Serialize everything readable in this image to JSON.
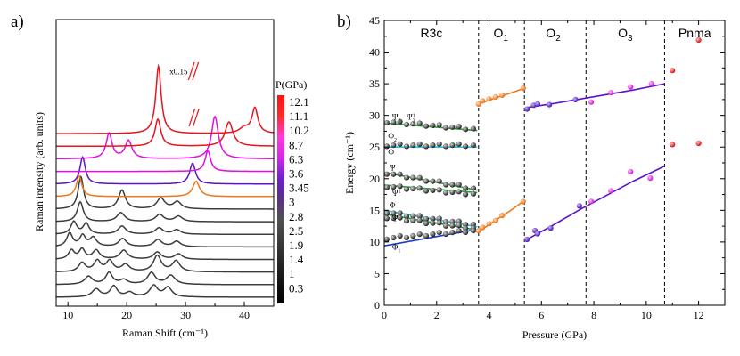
{
  "panel_a": {
    "label": "a)"
  },
  "panel_b": {
    "label": "b)"
  },
  "chart_data": [
    {
      "type": "line",
      "title": "",
      "xlabel": "Raman Shift (cm⁻¹)",
      "ylabel": "Raman intensity (arb. units)",
      "xlim": [
        8,
        45
      ],
      "x_ticks": [
        "10",
        "20",
        "30",
        "40"
      ],
      "annotation": "x0.15",
      "legend_title": "P(GPa)",
      "colorbar_labels": [
        "12.1",
        "11.1",
        "10.2",
        "8.7",
        "6.3",
        "3.6",
        "3.45",
        "3",
        "2.8",
        "2.5",
        "1.9",
        "1.4",
        "1",
        "0.3"
      ],
      "colorbar_label_colors": [
        "#e8141c",
        "#e8141c",
        "#e010e0",
        "#e010e0",
        "#5c14c8",
        "#f07818",
        "#222222",
        "#222222",
        "#222222",
        "#222222",
        "#222222",
        "#222222",
        "#222222",
        "#222222"
      ],
      "series": [
        {
          "name": "0.3",
          "color": "#3c3c3c",
          "baseline": 0.0,
          "peaks": [
            [
              14.8,
              0.9,
              0.8
            ],
            [
              17.8,
              1.2,
              0.7
            ],
            [
              20.5,
              0.5,
              0.8
            ],
            [
              24.6,
              1.25,
              0.8
            ],
            [
              27,
              1.05,
              0.8
            ]
          ]
        },
        {
          "name": "1",
          "color": "#3c3c3c",
          "baseline": 1.4,
          "peaks": [
            [
              13.5,
              0.9,
              0.8
            ],
            [
              17,
              1.3,
              0.7
            ],
            [
              19.5,
              0.5,
              0.8
            ],
            [
              24.2,
              1.3,
              0.8
            ],
            [
              27.5,
              1.0,
              0.9
            ]
          ]
        },
        {
          "name": "1.4",
          "color": "#3c3c3c",
          "baseline": 2.8,
          "peaks": [
            [
              12.4,
              1.0,
              0.7
            ],
            [
              15,
              1.2,
              0.7
            ],
            [
              17.1,
              1.2,
              0.7
            ],
            [
              19.8,
              0.8,
              0.8
            ],
            [
              25.2,
              1.8,
              0.8
            ],
            [
              28.4,
              1.2,
              0.8
            ]
          ]
        },
        {
          "name": "1.9",
          "color": "#3c3c3c",
          "baseline": 4.2,
          "peaks": [
            [
              10.6,
              1.0,
              0.6
            ],
            [
              12.4,
              1.1,
              0.6
            ],
            [
              14.8,
              1.0,
              0.7
            ],
            [
              19.5,
              1.0,
              0.8
            ],
            [
              25.2,
              0.8,
              0.8
            ],
            [
              28.8,
              0.6,
              0.8
            ]
          ]
        },
        {
          "name": "2.5",
          "color": "#3c3c3c",
          "baseline": 5.6,
          "peaks": [
            [
              10.3,
              1.5,
              0.6
            ],
            [
              12.5,
              1.2,
              0.6
            ],
            [
              14.3,
              1.0,
              0.7
            ],
            [
              19.3,
              0.9,
              0.8
            ],
            [
              25.3,
              0.8,
              0.8
            ],
            [
              28.5,
              0.6,
              0.8
            ]
          ]
        },
        {
          "name": "2.8",
          "color": "#3c3c3c",
          "baseline": 7.0,
          "peaks": [
            [
              11,
              1.4,
              0.6
            ],
            [
              13.1,
              1.2,
              0.6
            ],
            [
              19.2,
              0.9,
              0.8
            ],
            [
              25.5,
              0.7,
              0.8
            ],
            [
              28.5,
              0.5,
              0.8
            ]
          ]
        },
        {
          "name": "3",
          "color": "#3c3c3c",
          "baseline": 8.4,
          "peaks": [
            [
              12.1,
              2.2,
              0.6
            ],
            [
              19,
              1.0,
              0.8
            ],
            [
              25.6,
              0.8,
              0.8
            ],
            [
              28.8,
              0.6,
              0.8
            ]
          ]
        },
        {
          "name": "3.45",
          "color": "#3c3c3c",
          "baseline": 9.8,
          "peaks": [
            [
              12.2,
              3.6,
              0.55
            ],
            [
              19.2,
              2.1,
              0.7
            ],
            [
              25.8,
              1.2,
              0.8
            ],
            [
              28.6,
              0.8,
              0.8
            ]
          ]
        },
        {
          "name": "3.6",
          "color": "#f07818",
          "baseline": 11.2,
          "peaks": [
            [
              11.9,
              2.3,
              0.55
            ],
            [
              31.8,
              1.7,
              0.7
            ]
          ]
        },
        {
          "name": "6.3",
          "color": "#5c14c8",
          "baseline": 12.6,
          "peaks": [
            [
              12.5,
              3.0,
              0.55
            ],
            [
              31.2,
              2.3,
              0.6
            ]
          ]
        },
        {
          "name": "8.7",
          "color": "#e010e0",
          "baseline": 14.0,
          "peaks": [
            [
              33.8,
              2.3,
              0.55
            ]
          ]
        },
        {
          "name": "10.2",
          "color": "#e010e0",
          "baseline": 15.4,
          "peaks": [
            [
              17,
              2.8,
              0.6
            ],
            [
              20.3,
              2.0,
              0.7
            ],
            [
              35,
              4.7,
              0.7
            ]
          ]
        },
        {
          "name": "11.1",
          "color": "#e8141c",
          "baseline": 16.8,
          "peaks": [
            [
              25.3,
              3.0,
              0.6
            ],
            [
              37.4,
              2.7,
              0.8
            ]
          ]
        },
        {
          "name": "12.1",
          "color": "#e8141c",
          "baseline": 18.2,
          "peaks": [
            [
              25.4,
              7.5,
              0.55
            ],
            [
              40,
              0.6,
              1.0
            ],
            [
              41.8,
              2.8,
              0.6
            ]
          ]
        }
      ]
    },
    {
      "type": "scatter",
      "title": "",
      "xlabel": "Pressure (GPa)",
      "ylabel": "Energy (cm⁻¹)",
      "xlim": [
        0,
        13
      ],
      "ylim": [
        0,
        45
      ],
      "x_ticks": [
        "0",
        "2",
        "4",
        "6",
        "8",
        "10",
        "12"
      ],
      "y_ticks": [
        "0",
        "5",
        "10",
        "15",
        "20",
        "25",
        "30",
        "35",
        "40",
        "45"
      ],
      "phase_boundaries": [
        3.6,
        5.35,
        7.7,
        10.7
      ],
      "phases": [
        {
          "label": "R3c",
          "x": 1.8,
          "color": "#000000"
        },
        {
          "label": "O",
          "sub": "1",
          "x": 4.45,
          "color": "#f07818"
        },
        {
          "label": "O",
          "sub": "2",
          "x": 6.45,
          "color": "#5c14c8"
        },
        {
          "label": "O",
          "sub": "3",
          "x": 9.2,
          "color": "#e010e0"
        },
        {
          "label": "Pnma",
          "x": 11.85,
          "color": "#e8141c"
        }
      ],
      "mode_labels": [
        {
          "text": "Ψ",
          "sub": "3",
          "sup": "",
          "x": 0.3,
          "y": 29.3,
          "color": "#22a032"
        },
        {
          "text": "Ψ",
          "sub": "3",
          "sup": "1",
          "x": 0.85,
          "y": 29.3,
          "color": "#22a032"
        },
        {
          "text": "Φ",
          "sub": "2",
          "sup": "",
          "x": 0.15,
          "y": 26.3,
          "color": "#1a3cc8"
        },
        {
          "text": "Φ",
          "sub": "",
          "sup": "",
          "x": 0.15,
          "y": 23.8,
          "color": "#22c0e0"
        },
        {
          "text": "Ψ",
          "sub": "",
          "sup": "",
          "x": 0.2,
          "y": 21.3,
          "color": "#22a032"
        },
        {
          "text": "Ψ",
          "sub": "",
          "sup": "1",
          "x": 0.3,
          "y": 17.3,
          "color": "#22a032"
        },
        {
          "text": "Φ",
          "sub": "",
          "sup": "",
          "x": 0.2,
          "y": 15.4,
          "color": "#22c0e0"
        },
        {
          "text": "Ψ",
          "sub": "",
          "sup": "",
          "x": 0.3,
          "y": 13.3,
          "color": "#22a032"
        },
        {
          "text": "Φ",
          "sub": "1",
          "sup": "",
          "x": 0.3,
          "y": 8.8,
          "color": "#1a3cc8"
        }
      ],
      "fit_lines": [
        {
          "name": "Ψ3",
          "color": "#22a032",
          "points": [
            [
              0,
              28.8
            ],
            [
              3.55,
              27.6
            ]
          ]
        },
        {
          "name": "Φ2",
          "color": "#22c0e0",
          "points": [
            [
              0,
              25.0
            ],
            [
              3.55,
              25.0
            ]
          ]
        },
        {
          "name": "Ψ upper",
          "color": "#22a032",
          "points": [
            [
              0,
              21.0
            ],
            [
              3.55,
              18.2
            ]
          ]
        },
        {
          "name": "Ψ lower",
          "color": "#22a032",
          "points": [
            [
              0,
              19.0
            ],
            [
              3.55,
              17.8
            ]
          ]
        },
        {
          "name": "Φ",
          "color": "#22c0e0",
          "points": [
            [
              0,
              15.0
            ],
            [
              3.55,
              12.4
            ]
          ]
        },
        {
          "name": "Ψ",
          "color": "#22a032",
          "points": [
            [
              0,
              14.4
            ],
            [
              3.55,
              11.9
            ]
          ]
        },
        {
          "name": "Φ1",
          "color": "#1a3cc8",
          "points": [
            [
              0,
              9.4
            ],
            [
              3.55,
              12.0
            ]
          ]
        },
        {
          "name": "O1 upper",
          "color": "#f07818",
          "points": [
            [
              3.6,
              31.8
            ],
            [
              4.2,
              32.7
            ],
            [
              4.8,
              33.5
            ],
            [
              5.3,
              34.2
            ]
          ]
        },
        {
          "name": "O1 lower",
          "color": "#f07818",
          "points": [
            [
              3.6,
              11.6
            ],
            [
              4.2,
              13.3
            ],
            [
              4.8,
              14.9
            ],
            [
              5.3,
              16.4
            ]
          ]
        },
        {
          "name": "O2/O3 upper",
          "color": "#5c14c8",
          "points": [
            [
              5.4,
              31.2
            ],
            [
              6.5,
              31.9
            ],
            [
              7.5,
              32.6
            ],
            [
              8.5,
              33.3
            ],
            [
              9.5,
              34.0
            ],
            [
              10.7,
              35.0
            ]
          ]
        },
        {
          "name": "O2/O3 lower",
          "color": "#5c14c8",
          "points": [
            [
              5.4,
              10.3
            ],
            [
              6.5,
              12.8
            ],
            [
              7.5,
              15.2
            ],
            [
              8.5,
              17.4
            ],
            [
              9.5,
              19.6
            ],
            [
              10.7,
              22.0
            ]
          ]
        }
      ],
      "r3c_mode_points": [
        {
          "name": "Ψ3",
          "y0": 29.0,
          "y1": 27.9
        },
        {
          "name": "Φ2",
          "y0": 25.3,
          "y1": 25.3
        },
        {
          "name": "Ψ upper",
          "y0": 20.9,
          "y1": 18.5
        },
        {
          "name": "Ψ lower",
          "y0": 18.8,
          "y1": 17.6
        },
        {
          "name": "Φ",
          "y0": 14.7,
          "y1": 12.8
        },
        {
          "name": "Ψ",
          "y0": 13.9,
          "y1": 12.2
        },
        {
          "name": "Φ1",
          "y0": 10.6,
          "y1": 11.8
        }
      ],
      "r3c_pressures": [
        0.1,
        0.35,
        0.6,
        0.85,
        1.1,
        1.35,
        1.6,
        1.85,
        2.1,
        2.35,
        2.6,
        2.85,
        3.1,
        3.4
      ],
      "point_series": [
        {
          "name": "O1",
          "color": "#f07818",
          "points": [
            [
              3.6,
              31.8
            ],
            [
              3.75,
              32.3
            ],
            [
              4.0,
              32.6
            ],
            [
              4.25,
              32.9
            ],
            [
              4.5,
              33.2
            ],
            [
              5.3,
              34.3
            ],
            [
              3.6,
              11.8
            ],
            [
              3.75,
              12.3
            ],
            [
              4.0,
              12.9
            ],
            [
              4.25,
              13.4
            ],
            [
              4.5,
              14.2
            ],
            [
              5.3,
              16.4
            ]
          ]
        },
        {
          "name": "O2",
          "color": "#5c14c8",
          "points": [
            [
              5.45,
              31.0
            ],
            [
              5.7,
              31.6
            ],
            [
              5.85,
              31.8
            ],
            [
              6.3,
              31.7
            ],
            [
              7.3,
              32.5
            ],
            [
              5.45,
              10.4
            ],
            [
              5.75,
              11.8
            ],
            [
              5.85,
              11.3
            ],
            [
              6.35,
              12.2
            ],
            [
              7.45,
              15.7
            ]
          ]
        },
        {
          "name": "O3",
          "color": "#e010e0",
          "points": [
            [
              7.9,
              32.1
            ],
            [
              8.65,
              33.6
            ],
            [
              9.4,
              34.5
            ],
            [
              10.2,
              35.0
            ],
            [
              7.9,
              16.4
            ],
            [
              8.65,
              18.1
            ],
            [
              9.4,
              21.1
            ],
            [
              10.15,
              20.1
            ]
          ]
        },
        {
          "name": "Pnma",
          "color": "#e8141c",
          "points": [
            [
              11.0,
              37.1
            ],
            [
              12.0,
              41.9
            ],
            [
              11.0,
              25.4
            ],
            [
              12.0,
              25.6
            ]
          ]
        }
      ]
    }
  ]
}
